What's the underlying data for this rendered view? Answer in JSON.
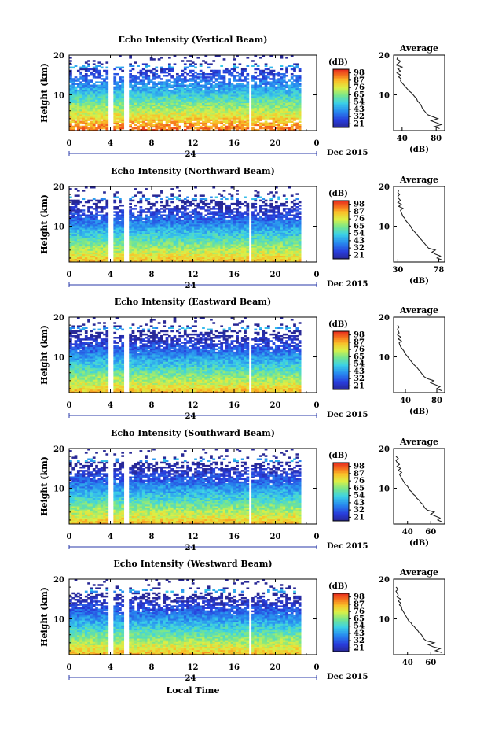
{
  "chart_data": [
    {
      "type": "heatmap",
      "title": "Echo Intensity (Vertical Beam)",
      "ylabel": "Height (km)",
      "x_ticks": [
        "0",
        "4",
        "8",
        "12",
        "16",
        "20",
        "0"
      ],
      "y_ticks": [
        "10",
        "20"
      ],
      "date_day": "24",
      "date_label": "Dec 2015",
      "colorbar_unit": "(dB)",
      "colorbar_ticks": [
        "98",
        "87",
        "76",
        "65",
        "54",
        "43",
        "32",
        "21"
      ],
      "xlim": [
        0,
        24
      ],
      "ylim": [
        1,
        20
      ],
      "avg_title": "Average",
      "avg_xlabel": "(dB)",
      "avg_xticks": [
        "40",
        "80"
      ],
      "avg_yticks": [
        "10",
        "20"
      ],
      "avg_xlim": [
        30,
        90
      ],
      "avg_profile": {
        "height": [
          1.5,
          2,
          2.5,
          3,
          3.5,
          4,
          4.5,
          5,
          5.5,
          6,
          6.5,
          7,
          7.5,
          8,
          8.5,
          9,
          9.5,
          10,
          10.5,
          11,
          11.5,
          12,
          12.5,
          13,
          13.5,
          14,
          14.5,
          15,
          15.5,
          16,
          16.5,
          17,
          17.5,
          18,
          18.5,
          19,
          19.5
        ],
        "db": [
          84,
          78,
          86,
          80,
          74,
          82,
          76,
          70,
          68,
          66,
          64,
          63,
          62,
          60,
          58,
          57,
          55,
          53,
          51,
          48,
          46,
          44,
          42,
          40,
          38,
          39,
          36,
          38,
          34,
          38,
          35,
          40,
          33,
          36,
          38,
          34,
          35
        ]
      }
    },
    {
      "type": "heatmap",
      "title": "Echo Intensity (Northward Beam)",
      "ylabel": "Height (km)",
      "x_ticks": [
        "0",
        "4",
        "8",
        "12",
        "16",
        "20",
        "0"
      ],
      "y_ticks": [
        "10",
        "20"
      ],
      "date_day": "24",
      "date_label": "Dec 2015",
      "colorbar_unit": "(dB)",
      "colorbar_ticks": [
        "98",
        "87",
        "76",
        "65",
        "54",
        "43",
        "32",
        "21"
      ],
      "xlim": [
        0,
        24
      ],
      "ylim": [
        1,
        20
      ],
      "avg_title": "Average",
      "avg_xlabel": "(dB)",
      "avg_xticks": [
        "30",
        "78"
      ],
      "avg_yticks": [
        "10",
        "20"
      ],
      "avg_xlim": [
        25,
        85
      ],
      "avg_profile": {
        "height": [
          1.5,
          2,
          2.5,
          3,
          3.5,
          4,
          4.5,
          5,
          5.5,
          6,
          6.5,
          7,
          7.5,
          8,
          8.5,
          9,
          9.5,
          10,
          10.5,
          11,
          11.5,
          12,
          12.5,
          13,
          13.5,
          14,
          14.5,
          15,
          15.5,
          16,
          16.5,
          17,
          17.5,
          18,
          18.5,
          19
        ],
        "db": [
          82,
          76,
          80,
          74,
          70,
          74,
          66,
          64,
          62,
          60,
          58,
          56,
          54,
          52,
          50,
          48,
          46,
          45,
          43,
          41,
          39,
          38,
          36,
          35,
          34,
          33,
          36,
          31,
          34,
          30,
          33,
          31,
          30,
          32,
          30,
          31
        ]
      }
    },
    {
      "type": "heatmap",
      "title": "Echo Intensity (Eastward Beam)",
      "ylabel": "Height (km)",
      "x_ticks": [
        "0",
        "4",
        "8",
        "12",
        "16",
        "20",
        "0"
      ],
      "y_ticks": [
        "10",
        "20"
      ],
      "date_day": "24",
      "date_label": "Dec 2015",
      "colorbar_unit": "(dB)",
      "colorbar_ticks": [
        "98",
        "87",
        "76",
        "65",
        "54",
        "43",
        "32",
        "21"
      ],
      "xlim": [
        0,
        24
      ],
      "ylim": [
        1,
        20
      ],
      "avg_title": "Average",
      "avg_xlabel": "(dB)",
      "avg_xticks": [
        "40",
        "80"
      ],
      "avg_yticks": [
        "10",
        "20"
      ],
      "avg_xlim": [
        25,
        90
      ],
      "avg_profile": {
        "height": [
          1.5,
          2,
          2.5,
          3,
          3.5,
          4,
          4.5,
          5,
          5.5,
          6,
          6.5,
          7,
          7.5,
          8,
          8.5,
          9,
          9.5,
          10,
          10.5,
          11,
          11.5,
          12,
          12.5,
          13,
          13.5,
          14,
          14.5,
          15,
          15.5,
          16,
          16.5,
          17,
          17.5,
          18
        ],
        "db": [
          86,
          80,
          84,
          78,
          72,
          76,
          68,
          64,
          62,
          60,
          58,
          56,
          54,
          51,
          49,
          47,
          45,
          43,
          41,
          39,
          38,
          36,
          34,
          33,
          32,
          35,
          31,
          34,
          30,
          32,
          31,
          30,
          32,
          30
        ]
      }
    },
    {
      "type": "heatmap",
      "title": "Echo Intensity (Southward Beam)",
      "ylabel": "Height (km)",
      "x_ticks": [
        "0",
        "4",
        "8",
        "12",
        "16",
        "20",
        "0"
      ],
      "y_ticks": [
        "10",
        "20"
      ],
      "date_day": "24",
      "date_label": "Dec 2015",
      "colorbar_unit": "(dB)",
      "colorbar_ticks": [
        "98",
        "87",
        "76",
        "65",
        "54",
        "43",
        "32",
        "21"
      ],
      "xlim": [
        0,
        24
      ],
      "ylim": [
        1,
        20
      ],
      "avg_title": "Average",
      "avg_xlabel": "(dB)",
      "avg_xticks": [
        "40",
        "60"
      ],
      "avg_yticks": [
        "10",
        "20"
      ],
      "avg_xlim": [
        28,
        72
      ],
      "avg_profile": {
        "height": [
          1.5,
          2,
          2.5,
          3,
          3.5,
          4,
          4.5,
          5,
          5.5,
          6,
          6.5,
          7,
          7.5,
          8,
          8.5,
          9,
          9.5,
          10,
          10.5,
          11,
          11.5,
          12,
          12.5,
          13,
          13.5,
          14,
          14.5,
          15,
          15.5,
          16,
          16.5,
          17,
          17.5,
          18
        ],
        "db": [
          70,
          66,
          68,
          64,
          60,
          63,
          57,
          55,
          54,
          53,
          51,
          50,
          48,
          47,
          45,
          44,
          42,
          41,
          40,
          38,
          37,
          36,
          35,
          34,
          33,
          35,
          32,
          34,
          31,
          33,
          31,
          30,
          32,
          30
        ]
      }
    },
    {
      "type": "heatmap",
      "title": "Echo Intensity (Westward Beam)",
      "ylabel": "Height (km)",
      "x_ticks": [
        "0",
        "4",
        "8",
        "12",
        "16",
        "20",
        "0"
      ],
      "y_ticks": [
        "10",
        "20"
      ],
      "date_day": "24",
      "date_label": "Dec 2015",
      "colorbar_unit": "(dB)",
      "colorbar_ticks": [
        "98",
        "87",
        "76",
        "65",
        "54",
        "43",
        "32",
        "21"
      ],
      "xlim": [
        0,
        24
      ],
      "ylim": [
        1,
        20
      ],
      "xlabel": "Local Time",
      "avg_title": "Average",
      "avg_xlabel": "",
      "avg_xticks": [
        "40",
        "60"
      ],
      "avg_yticks": [
        "10",
        "20"
      ],
      "avg_xlim": [
        28,
        72
      ],
      "avg_profile": {
        "height": [
          1.5,
          2,
          2.5,
          3,
          3.5,
          4,
          4.5,
          5,
          5.5,
          6,
          6.5,
          7,
          7.5,
          8,
          8.5,
          9,
          9.5,
          10,
          10.5,
          11,
          11.5,
          12,
          12.5,
          13,
          13.5,
          14,
          14.5,
          15,
          15.5,
          16,
          16.5,
          17,
          17.5,
          18
        ],
        "db": [
          70,
          64,
          68,
          62,
          58,
          63,
          56,
          54,
          53,
          52,
          50,
          49,
          47,
          46,
          44,
          43,
          41,
          40,
          39,
          38,
          37,
          36,
          35,
          35,
          33,
          34,
          32,
          34,
          31,
          32,
          31,
          30,
          32,
          30
        ]
      }
    }
  ]
}
